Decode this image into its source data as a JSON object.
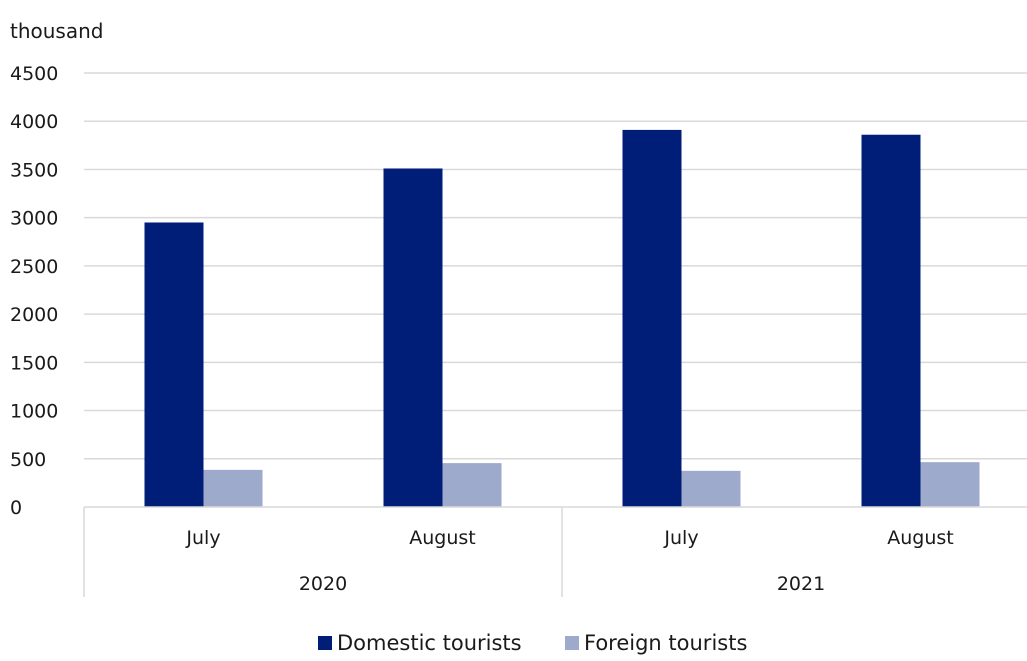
{
  "chart_data": {
    "type": "bar",
    "unit_label": "thousand",
    "ylim": [
      0,
      4500
    ],
    "y_ticks": [
      "0",
      "500",
      "1000",
      "1500",
      "2000",
      "2500",
      "3000",
      "3500",
      "4000",
      "4500"
    ],
    "groups": [
      {
        "label": "2020",
        "categories": [
          "July",
          "August"
        ]
      },
      {
        "label": "2021",
        "categories": [
          "July",
          "August"
        ]
      }
    ],
    "categories": [
      "July",
      "August",
      "July",
      "August"
    ],
    "series": [
      {
        "name": "Domestic tourists",
        "color": "#001e78",
        "values": [
          2950,
          3510,
          3910,
          3860
        ]
      },
      {
        "name": "Foreign tourists",
        "color": "#9eaacb",
        "values": [
          385,
          455,
          375,
          465
        ]
      }
    ],
    "grid": true,
    "legend_position": "bottom"
  }
}
